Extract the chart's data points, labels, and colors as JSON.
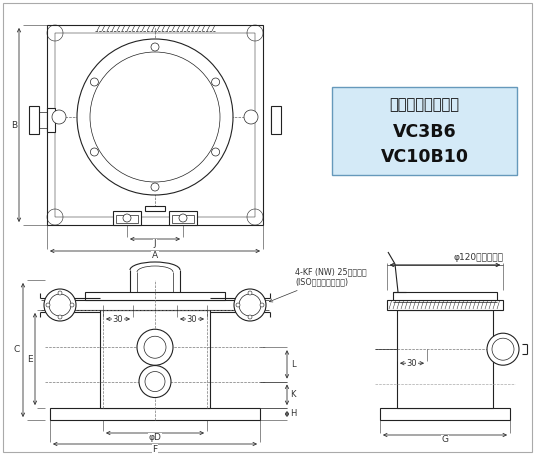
{
  "bg_color": "#ffffff",
  "line_color": "#222222",
  "dim_color": "#333333",
  "light_blue": "#d4eaf7",
  "title_text": "ステンレスモデル",
  "model1": "VC3B6",
  "model2": "VC10B10",
  "annotation1": "4-KF (NW) 25フランジ",
  "annotation2": "(ISO真空用フランジ)",
  "annotation3": "φ120（確認窓）",
  "dim_A": "A",
  "dim_B": "B",
  "dim_J": "J",
  "dim_C": "C",
  "dim_E": "E",
  "dim_D": "φD",
  "dim_F": "F",
  "dim_G": "G",
  "dim_H": "H",
  "dim_K": "K",
  "dim_L": "L",
  "val30": "30"
}
